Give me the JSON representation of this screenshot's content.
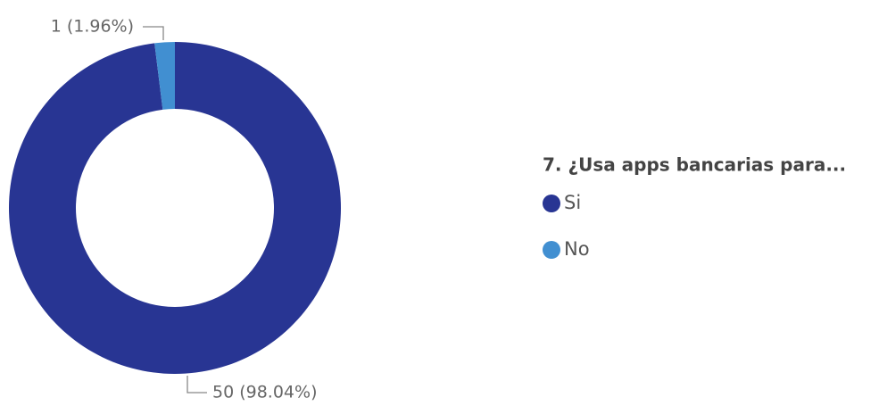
{
  "chart_data": {
    "type": "donut",
    "legend_title": "7. ¿Usa apps bancarias para...",
    "categories": [
      "Si",
      "No"
    ],
    "values": [
      50,
      1
    ],
    "value_labels": [
      "50 (98.04%)",
      "1 (1.96%)"
    ],
    "colors": [
      "#283593",
      "#418fd1"
    ],
    "legend": "right"
  }
}
